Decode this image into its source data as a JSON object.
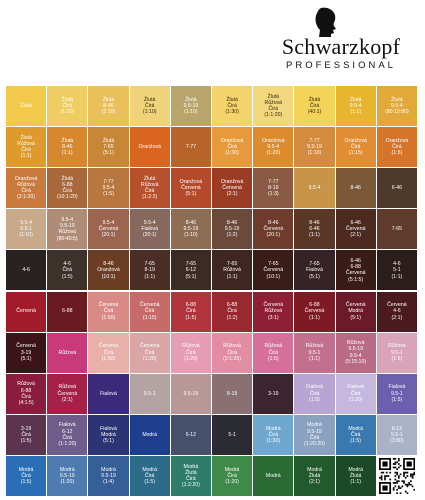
{
  "brand": {
    "name": "Schwarzkopf",
    "subtitle": "PROFESSIONAL",
    "logo_icon": "head-silhouette-icon"
  },
  "swatches": [
    [
      {
        "label": "Žlutá",
        "color": "#f2c94a"
      },
      {
        "label": "Žlutá\nČirá\n(1:10)",
        "color": "#f0cd63"
      },
      {
        "label": "Žlutá\n8-46\n(1:10)",
        "color": "#e9c05a"
      },
      {
        "label": "Žlutá\nČirá\n(1:10)",
        "color": "#efd37a"
      },
      {
        "label": "Žlutá\n9.5-19\n(1:10)",
        "color": "#b9a46c"
      },
      {
        "label": "Žlutá\nČirá\n(1:30)",
        "color": "#f3d36a"
      },
      {
        "label": "Žlutá\nRůžová\nČirá\n(1:1:20)",
        "color": "#f1d77e"
      },
      {
        "label": "Žlutá\nČirá\n(40:1)",
        "color": "#f4d35a"
      },
      {
        "label": "Žlutá\n9.5-4\n(1:1)",
        "color": "#e8b52f"
      },
      {
        "label": "Žlutá\n9.5-4\n(80:10:80)",
        "color": "#e1a83a"
      }
    ],
    [
      {
        "label": "Žlutá\nRůžová\nČirá\n(1:1)",
        "color": "#de9a2c"
      },
      {
        "label": "Žlutá\n8-46\n(1:1)",
        "color": "#d7882f"
      },
      {
        "label": "Žlutá\n7-65\n(5:1)",
        "color": "#c88736"
      },
      {
        "label": "Oranžová",
        "color": "#d9651f"
      },
      {
        "label": "7-77",
        "color": "#b8632a"
      },
      {
        "label": "Oranžová\nČirá\n(1:30)",
        "color": "#e69a3c"
      },
      {
        "label": "Oranžová\n9.5-4\n(1:20)",
        "color": "#dc8b2e"
      },
      {
        "label": "7-77\n9.5-19\n(1:10)",
        "color": "#d48a3f"
      },
      {
        "label": "Oranžová\nČirá\n(1:15)",
        "color": "#e08d33"
      },
      {
        "label": "Oranžová\nČirá\n(1:5)",
        "color": "#d6752a"
      }
    ],
    [
      {
        "label": "Oranžová\nRůžová\nČirá\n(2:1:20)",
        "color": "#c97a3c"
      },
      {
        "label": "Žlutá\n6-88\nČirá\n(10:1:20)",
        "color": "#a8683b"
      },
      {
        "label": "7-77\n9.5-4\n(1:5)",
        "color": "#b8773f"
      },
      {
        "label": "Žlutá\nRůžová\nČirá\n(1:2:2)",
        "color": "#b7502c"
      },
      {
        "label": "Oranžová\nČervená\n(5:1)",
        "color": "#b54a2a"
      },
      {
        "label": "Oranžová\nČervená\n(2:1)",
        "color": "#9a3d24"
      },
      {
        "label": "7-77\n8-19\n(1:3)",
        "color": "#8a5a44"
      },
      {
        "label": "9.5-4",
        "color": "#c6954a"
      },
      {
        "label": "8-46",
        "color": "#7a5838"
      },
      {
        "label": "6-46",
        "color": "#4e3a2b"
      }
    ],
    [
      {
        "label": "9.5-4\n9.5-1\n(1:10)",
        "color": "#c8a989"
      },
      {
        "label": "9.5-4\n9.5-19\nRůžová\n(80:40:5)",
        "color": "#b08c77"
      },
      {
        "label": "9.5-4\nČervená\n(20:1)",
        "color": "#9b6550"
      },
      {
        "label": "9.5-4\nFialová\n(20:1)",
        "color": "#86685e"
      },
      {
        "label": "8-46\n9.5-19\n(1:10)",
        "color": "#8e6d55"
      },
      {
        "label": "8-46\n9.5-19\n(1:2)",
        "color": "#6b4a3c"
      },
      {
        "label": "8-46\nČervená\n(20:1)",
        "color": "#6f3b2c"
      },
      {
        "label": "8-46\n6-46\n(1:1)",
        "color": "#5a3627"
      },
      {
        "label": "6-46\nČervená\n(2:1)",
        "color": "#4d2a20"
      },
      {
        "label": "7-65",
        "color": "#5e3b2b"
      }
    ],
    [
      {
        "label": "4-6",
        "color": "#2a2220"
      },
      {
        "label": "4-6\nČirá\n(1:5)",
        "color": "#3d312b"
      },
      {
        "label": "8-46\nOranžová\n(10:1)",
        "color": "#6b3d24"
      },
      {
        "label": "7-65\n8-19\n(1:1)",
        "color": "#4a2d24"
      },
      {
        "label": "7-65\n6-12\n(5:1)",
        "color": "#3c2a25"
      },
      {
        "label": "7-65\nRůžová\n(1:1)",
        "color": "#3f2622"
      },
      {
        "label": "7-65\nČervená\n(10:1)",
        "color": "#3a1d18"
      },
      {
        "label": "7-65\nFialová\n(5:1)",
        "color": "#372327"
      },
      {
        "label": "6-46\n6-88\nČervená\n(5:1:5)",
        "color": "#3a1c17"
      },
      {
        "label": "4-6\n5-1\n(1:1)",
        "color": "#2a1d1a"
      }
    ],
    [
      {
        "label": "Červená",
        "color": "#a11c2a"
      },
      {
        "label": "6-88",
        "color": "#6b1a22"
      },
      {
        "label": "Červená\nČirá\n(1:50)",
        "color": "#d98a86"
      },
      {
        "label": "Červená\nČirá\n(1:15)",
        "color": "#c66b6a"
      },
      {
        "label": "6-88\nČirá\n(1:5)",
        "color": "#b0353c"
      },
      {
        "label": "6-88\nČirá\n(1:2)",
        "color": "#9a2830"
      },
      {
        "label": "Červená\nRůžová\n(3:1)",
        "color": "#8f1f35"
      },
      {
        "label": "6-88\nČervená\n(1:1)",
        "color": "#7d1a24"
      },
      {
        "label": "Červená\nModrá\n(5:1)",
        "color": "#6b1a2a"
      },
      {
        "label": "Červená\n4-6\n(2:1)",
        "color": "#4a1a1e"
      }
    ],
    [
      {
        "label": "Červená\n3-19\n(5:1)",
        "color": "#3a1418"
      },
      {
        "label": "Růžová",
        "color": "#c93a7a"
      },
      {
        "label": "Červená\nČirá\n(1:50)",
        "color": "#e8b0a9"
      },
      {
        "label": "Červená\nČirá\n(1:20)",
        "color": "#d9a5a6"
      },
      {
        "label": "Růžová\nČirá\n(1:20)",
        "color": "#e59cb4"
      },
      {
        "label": "Růžová\nČirá\n(2:1:25)",
        "color": "#e38da4"
      },
      {
        "label": "Růžová\nČirá\n(1:5)",
        "color": "#d5709a"
      },
      {
        "label": "Růžová\n9.5-1\n(1:1)",
        "color": "#c2708e"
      },
      {
        "label": "Růžová\n9.5-19\n9.5-4\n(5:15:10)",
        "color": "#b96b86"
      },
      {
        "label": "Růžová\n9.5-1\n(1:5)",
        "color": "#d9a3b8"
      }
    ],
    [
      {
        "label": "Růžová\n6-88\nČirá\n(4:1:5)",
        "color": "#8a1c3e"
      },
      {
        "label": "Růžová\nČervená\n(2:1)",
        "color": "#a5214a"
      },
      {
        "label": "Fialová",
        "color": "#3b2a7a"
      },
      {
        "label": "9.5-1",
        "color": "#b4a3a3"
      },
      {
        "label": "9.5-19",
        "color": "#b79896"
      },
      {
        "label": "8-19",
        "color": "#8a6f73"
      },
      {
        "label": "3-19",
        "color": "#3c2430"
      },
      {
        "label": "Fialová\nČirá\n(1:5)",
        "color": "#b7a6d4"
      },
      {
        "label": "Fialová\nČirá\n(1:20)",
        "color": "#c4b8df"
      },
      {
        "label": "Fialová\n9.5-1\n(1:5)",
        "color": "#6c5fae"
      }
    ],
    [
      {
        "label": "3-19\nČirá\n(1:5)",
        "color": "#5b3450"
      },
      {
        "label": "Fialová\n6-12\nČirá\n(1:1:20)",
        "color": "#6e5d8a"
      },
      {
        "label": "Fialová\nModrá\n(5:1)",
        "color": "#2b3575"
      },
      {
        "label": "Modrá",
        "color": "#1d3e8c"
      },
      {
        "label": "6-12",
        "color": "#47506a"
      },
      {
        "label": "5-1",
        "color": "#2b2b33"
      },
      {
        "label": "Modrá\nČirá\n(1:30)",
        "color": "#6fa7cf"
      },
      {
        "label": "Modrá\n9.5-19\nČirá\n(1:20:20)",
        "color": "#8aa1c0"
      },
      {
        "label": "Modrá\nČirá\n(1:5)",
        "color": "#3a79b0"
      },
      {
        "label": "6-12\n9.5-1\n(3:80)",
        "color": "#aab2c8"
      }
    ],
    [
      {
        "label": "Modrá\nČirá\n(1:5)",
        "color": "#2a6fb6"
      },
      {
        "label": "Modrá\n9.5-19\n(1:20)",
        "color": "#4e7cb0"
      },
      {
        "label": "Modrá\n9.5-19\n(1:4)",
        "color": "#375f97"
      },
      {
        "label": "Modrá\nČirá\n(1:5)",
        "color": "#2d6b8a"
      },
      {
        "label": "Modrá\nŽlutá\nČirá\n(1:2:20)",
        "color": "#2d7d6a"
      },
      {
        "label": "Modrá\nČirá\n(1:20)",
        "color": "#3f8a4a"
      },
      {
        "label": "Modrá",
        "color": "#2a6a35"
      },
      {
        "label": "Modrá\nŽlutá\n(2:1)",
        "color": "#235a2d"
      },
      {
        "label": "Modrá\nŽlutá\n(1:1)",
        "color": "#1c4a26"
      },
      {
        "label": "",
        "color": "#ffffff",
        "qr": true,
        "qr_icon": "qr-code-icon"
      }
    ]
  ]
}
